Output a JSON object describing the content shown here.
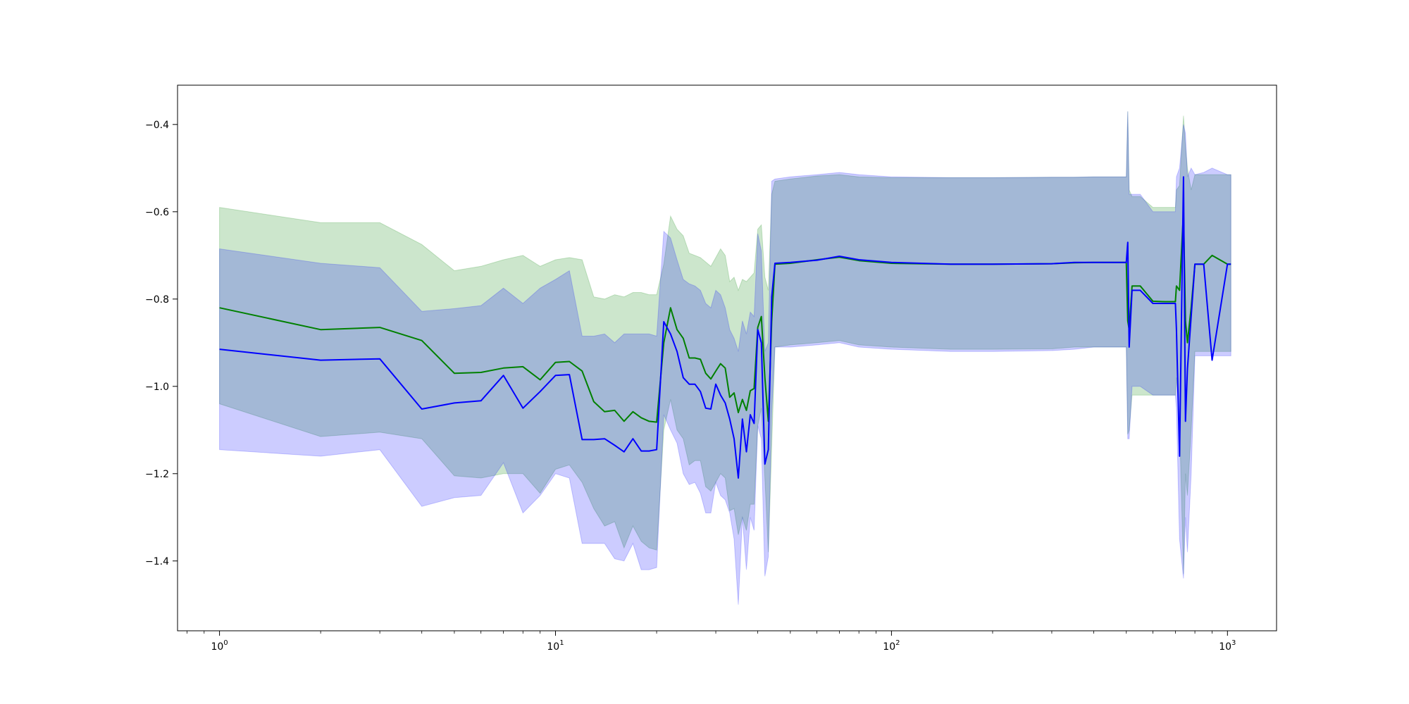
{
  "chart_data": {
    "type": "line",
    "title": "",
    "xlabel": "",
    "ylabel": "",
    "xscale": "log",
    "xlim": [
      0.75,
      1400
    ],
    "ylim": [
      -1.56,
      -0.31
    ],
    "grid": false,
    "legend": "none",
    "x_ticks": [
      {
        "value": 1,
        "base": "10",
        "exp": "0"
      },
      {
        "value": 10,
        "base": "10",
        "exp": "1"
      },
      {
        "value": 100,
        "base": "10",
        "exp": "2"
      },
      {
        "value": 1000,
        "base": "10",
        "exp": "3"
      }
    ],
    "y_ticks": [
      {
        "value": -0.4,
        "label": "−0.4"
      },
      {
        "value": -0.6,
        "label": "−0.6"
      },
      {
        "value": -0.8,
        "label": "−0.8"
      },
      {
        "value": -1.0,
        "label": "−1.0"
      },
      {
        "value": -1.2,
        "label": "−1.2"
      },
      {
        "value": -1.4,
        "label": "−1.4"
      }
    ],
    "series": [
      {
        "color": "#008000",
        "band_color": "#008000",
        "band_opacity": 0.2,
        "x": [
          1,
          2,
          3,
          4,
          5,
          6,
          7,
          8,
          9,
          10,
          11,
          12,
          13,
          14,
          15,
          16,
          17,
          18,
          19,
          20,
          21,
          22,
          23,
          24,
          25,
          26,
          27,
          28,
          29,
          30,
          31,
          32,
          33,
          34,
          35,
          36,
          37,
          38,
          39,
          40,
          41,
          42,
          43,
          44,
          45,
          50,
          60,
          70,
          80,
          100,
          150,
          200,
          300,
          350,
          400,
          500,
          505,
          510,
          520,
          550,
          600,
          650,
          700,
          705,
          720,
          740,
          750,
          760,
          780,
          800,
          850,
          900,
          1000,
          1024
        ],
        "y": [
          -0.82,
          -0.87,
          -0.865,
          -0.895,
          -0.97,
          -0.968,
          -0.958,
          -0.955,
          -0.985,
          -0.945,
          -0.943,
          -0.965,
          -1.035,
          -1.058,
          -1.055,
          -1.08,
          -1.058,
          -1.072,
          -1.08,
          -1.082,
          -0.9,
          -0.82,
          -0.87,
          -0.89,
          -0.935,
          -0.935,
          -0.938,
          -0.97,
          -0.983,
          -0.965,
          -0.948,
          -0.958,
          -1.025,
          -1.015,
          -1.06,
          -1.03,
          -1.055,
          -1.01,
          -1.005,
          -0.865,
          -0.84,
          -0.98,
          -1.08,
          -0.85,
          -0.72,
          -0.718,
          -0.71,
          -0.704,
          -0.712,
          -0.718,
          -0.72,
          -0.72,
          -0.719,
          -0.717,
          -0.716,
          -0.716,
          -0.85,
          -0.87,
          -0.77,
          -0.77,
          -0.805,
          -0.806,
          -0.806,
          -0.77,
          -0.78,
          -0.6,
          -0.85,
          -0.9,
          -0.82,
          -0.72,
          -0.72,
          -0.7,
          -0.72,
          -0.72
        ],
        "upper": [
          -0.59,
          -0.625,
          -0.625,
          -0.675,
          -0.735,
          -0.725,
          -0.71,
          -0.7,
          -0.725,
          -0.71,
          -0.705,
          -0.71,
          -0.795,
          -0.8,
          -0.79,
          -0.795,
          -0.785,
          -0.785,
          -0.79,
          -0.79,
          -0.72,
          -0.61,
          -0.64,
          -0.655,
          -0.695,
          -0.7,
          -0.705,
          -0.715,
          -0.725,
          -0.705,
          -0.685,
          -0.7,
          -0.76,
          -0.75,
          -0.78,
          -0.755,
          -0.76,
          -0.75,
          -0.74,
          -0.64,
          -0.63,
          -0.75,
          -0.78,
          -0.56,
          -0.53,
          -0.525,
          -0.518,
          -0.515,
          -0.52,
          -0.522,
          -0.522,
          -0.522,
          -0.521,
          -0.521,
          -0.52,
          -0.52,
          -0.37,
          -0.55,
          -0.565,
          -0.565,
          -0.59,
          -0.59,
          -0.59,
          -0.55,
          -0.54,
          -0.38,
          -0.45,
          -0.5,
          -0.55,
          -0.515,
          -0.515,
          -0.515,
          -0.515,
          -0.515
        ],
        "lower": [
          -1.04,
          -1.115,
          -1.105,
          -1.12,
          -1.205,
          -1.21,
          -1.2,
          -1.2,
          -1.245,
          -1.19,
          -1.18,
          -1.22,
          -1.28,
          -1.32,
          -1.31,
          -1.37,
          -1.32,
          -1.355,
          -1.37,
          -1.375,
          -1.1,
          -1.03,
          -1.1,
          -1.12,
          -1.18,
          -1.17,
          -1.17,
          -1.23,
          -1.24,
          -1.22,
          -1.2,
          -1.21,
          -1.285,
          -1.28,
          -1.34,
          -1.3,
          -1.33,
          -1.27,
          -1.27,
          -1.09,
          -1.05,
          -1.21,
          -1.38,
          -1.14,
          -0.91,
          -0.905,
          -0.9,
          -0.895,
          -0.905,
          -0.91,
          -0.915,
          -0.915,
          -0.914,
          -0.91,
          -0.91,
          -0.91,
          -1.11,
          -1.1,
          -1.02,
          -1.02,
          -1.02,
          -1.02,
          -1.02,
          -0.98,
          -1.08,
          -1.43,
          -1.2,
          -1.25,
          -1.1,
          -0.92,
          -0.92,
          -0.92,
          -0.92,
          -0.92
        ]
      },
      {
        "color": "#0000ff",
        "band_color": "#0000ff",
        "band_opacity": 0.2,
        "x": [
          1,
          2,
          3,
          4,
          5,
          6,
          7,
          8,
          9,
          10,
          11,
          12,
          13,
          14,
          15,
          16,
          17,
          18,
          19,
          20,
          21,
          22,
          23,
          24,
          25,
          26,
          27,
          28,
          29,
          30,
          31,
          32,
          33,
          34,
          35,
          36,
          37,
          38,
          39,
          40,
          41,
          42,
          43,
          44,
          45,
          50,
          60,
          70,
          80,
          100,
          150,
          200,
          300,
          350,
          400,
          500,
          505,
          510,
          520,
          550,
          600,
          650,
          700,
          705,
          720,
          740,
          750,
          760,
          780,
          800,
          850,
          900,
          1000,
          1024
        ],
        "y": [
          -0.915,
          -0.94,
          -0.937,
          -1.052,
          -1.038,
          -1.033,
          -0.975,
          -1.05,
          -1.012,
          -0.975,
          -0.973,
          -1.122,
          -1.122,
          -1.12,
          -1.135,
          -1.15,
          -1.12,
          -1.148,
          -1.148,
          -1.145,
          -0.852,
          -0.88,
          -0.92,
          -0.98,
          -0.995,
          -0.995,
          -1.012,
          -1.05,
          -1.052,
          -0.995,
          -1.02,
          -1.038,
          -1.075,
          -1.12,
          -1.21,
          -1.075,
          -1.15,
          -1.065,
          -1.085,
          -0.87,
          -0.9,
          -1.178,
          -1.145,
          -0.795,
          -0.718,
          -0.716,
          -0.711,
          -0.702,
          -0.71,
          -0.716,
          -0.72,
          -0.72,
          -0.719,
          -0.716,
          -0.716,
          -0.716,
          -0.67,
          -0.91,
          -0.78,
          -0.78,
          -0.81,
          -0.81,
          -0.81,
          -0.87,
          -1.16,
          -0.52,
          -1.08,
          -0.96,
          -0.84,
          -0.72,
          -0.72,
          -0.94,
          -0.72,
          -0.72
        ],
        "upper": [
          -0.685,
          -0.718,
          -0.728,
          -0.828,
          -0.822,
          -0.815,
          -0.775,
          -0.81,
          -0.775,
          -0.755,
          -0.735,
          -0.885,
          -0.885,
          -0.88,
          -0.9,
          -0.88,
          -0.88,
          -0.88,
          -0.88,
          -0.885,
          -0.645,
          -0.66,
          -0.71,
          -0.755,
          -0.765,
          -0.77,
          -0.78,
          -0.81,
          -0.82,
          -0.78,
          -0.79,
          -0.82,
          -0.87,
          -0.89,
          -0.92,
          -0.85,
          -0.88,
          -0.83,
          -0.84,
          -0.65,
          -0.69,
          -0.92,
          -0.9,
          -0.53,
          -0.525,
          -0.52,
          -0.515,
          -0.51,
          -0.515,
          -0.52,
          -0.522,
          -0.522,
          -0.521,
          -0.521,
          -0.52,
          -0.52,
          -0.37,
          -0.56,
          -0.56,
          -0.56,
          -0.6,
          -0.6,
          -0.6,
          -0.52,
          -0.5,
          -0.4,
          -0.42,
          -0.52,
          -0.5,
          -0.515,
          -0.51,
          -0.5,
          -0.515,
          -0.515
        ],
        "lower": [
          -1.145,
          -1.16,
          -1.145,
          -1.275,
          -1.255,
          -1.25,
          -1.175,
          -1.29,
          -1.25,
          -1.2,
          -1.21,
          -1.36,
          -1.36,
          -1.36,
          -1.395,
          -1.4,
          -1.36,
          -1.42,
          -1.42,
          -1.415,
          -1.065,
          -1.1,
          -1.13,
          -1.2,
          -1.225,
          -1.22,
          -1.245,
          -1.29,
          -1.29,
          -1.22,
          -1.25,
          -1.26,
          -1.29,
          -1.35,
          -1.5,
          -1.3,
          -1.42,
          -1.3,
          -1.33,
          -1.09,
          -1.12,
          -1.435,
          -1.39,
          -1.06,
          -0.91,
          -0.91,
          -0.905,
          -0.9,
          -0.91,
          -0.915,
          -0.92,
          -0.92,
          -0.918,
          -0.915,
          -0.91,
          -0.91,
          -1.12,
          -1.12,
          -1.0,
          -1.0,
          -1.02,
          -1.02,
          -1.02,
          -1.05,
          -1.35,
          -1.44,
          -1.3,
          -1.38,
          -1.2,
          -0.93,
          -0.93,
          -0.93,
          -0.93,
          -0.93
        ]
      }
    ]
  }
}
